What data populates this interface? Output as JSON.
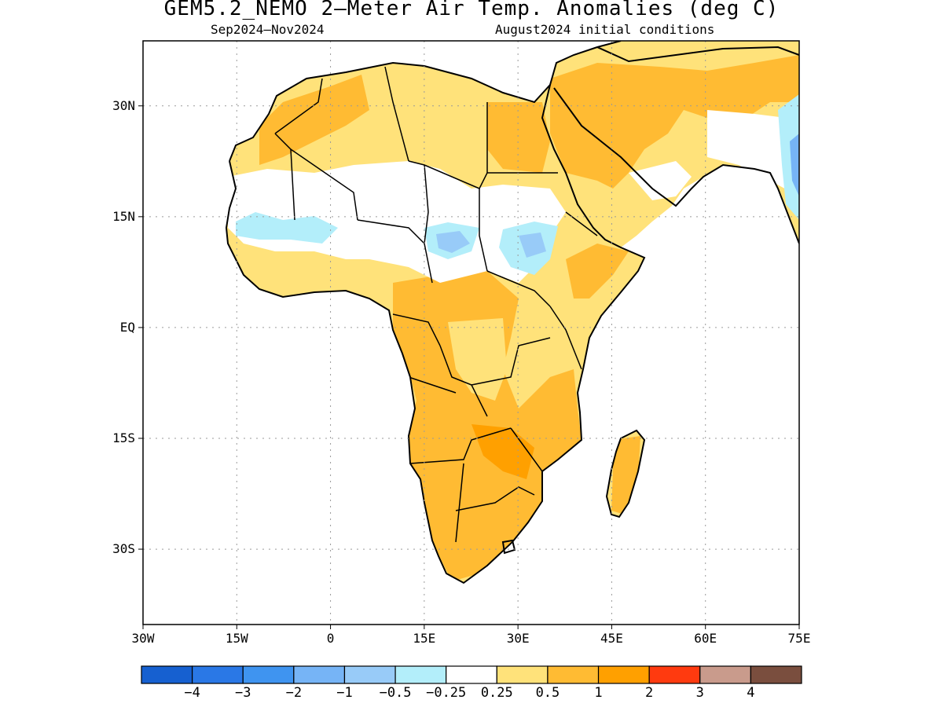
{
  "title": "GEM5.2_NEMO 2–Meter Air Temp. Anomalies (deg C)",
  "period": "Sep2024–Nov2024",
  "init": "August2024 initial conditions",
  "lat_ticks": [
    {
      "value": 30,
      "label": "30N"
    },
    {
      "value": 15,
      "label": "15N"
    },
    {
      "value": 0,
      "label": "EQ"
    },
    {
      "value": -15,
      "label": "15S"
    },
    {
      "value": -30,
      "label": "30S"
    }
  ],
  "lon_ticks": [
    {
      "value": -30,
      "label": "30W"
    },
    {
      "value": -15,
      "label": "15W"
    },
    {
      "value": 0,
      "label": "0"
    },
    {
      "value": 15,
      "label": "15E"
    },
    {
      "value": 30,
      "label": "30E"
    },
    {
      "value": 45,
      "label": "45E"
    },
    {
      "value": 60,
      "label": "60E"
    },
    {
      "value": 75,
      "label": "75E"
    }
  ],
  "colorbar": {
    "colors": [
      "#1660d0",
      "#2a78e6",
      "#3f94f0",
      "#76b4f6",
      "#98cbf8",
      "#b3eefa",
      "#ffffff",
      "#ffe27a",
      "#ffbb33",
      "#ffa000",
      "#ff3a0f",
      "#c99b8c",
      "#7a4e3e"
    ],
    "labels": [
      "−4",
      "−3",
      "−2",
      "−1",
      "−0.5",
      "−0.25",
      "0.25",
      "0.5",
      "1",
      "2",
      "3",
      "4"
    ]
  }
}
